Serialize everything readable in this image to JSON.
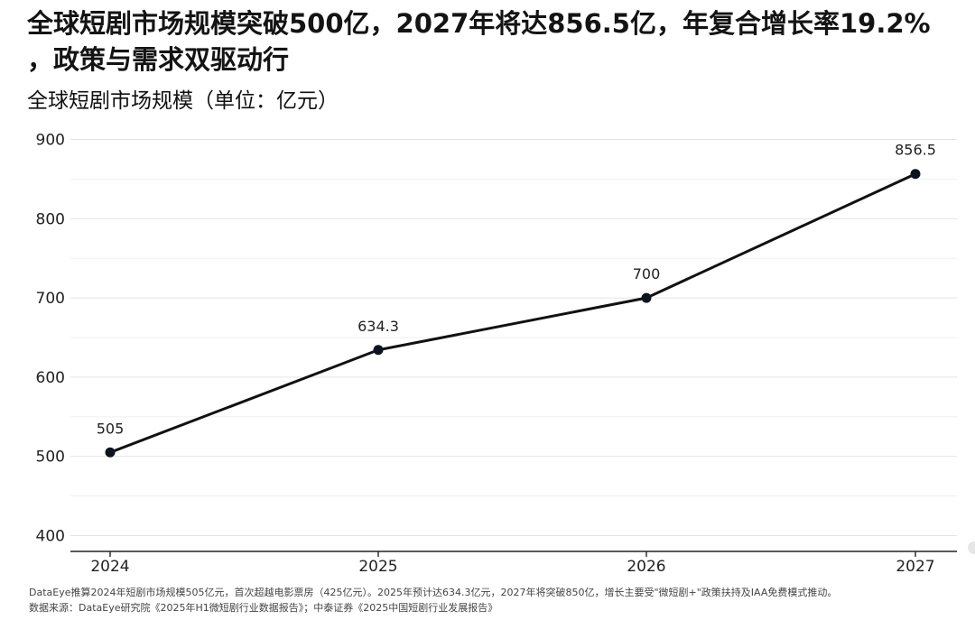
{
  "headline": {
    "line1": "全球短剧市场规模突破500亿，2027年将达856.5亿，年复合增长率19.2%",
    "line2": "，政策与需求双驱动行"
  },
  "chart_data": {
    "type": "line",
    "title": "全球短剧市场规模（单位：亿元）",
    "categories": [
      "2024",
      "2025",
      "2026",
      "2027"
    ],
    "values": [
      505,
      634.3,
      700,
      856.5
    ],
    "data_labels": [
      "505",
      "634.3",
      "700",
      "856.5"
    ],
    "y_ticks": [
      400,
      500,
      600,
      700,
      800,
      900
    ],
    "y_tick_labels": [
      "400",
      "500",
      "600",
      "700",
      "800",
      "900"
    ],
    "ylim": [
      380,
      920
    ],
    "xlabel": "",
    "ylabel": "",
    "grid": true,
    "line_color": "#111111",
    "grid_color": "#e4e4e4"
  },
  "notes": {
    "line1": "DataEye推算2024年短剧市场规模505亿元，首次超越电影票房（425亿元）。2025年预计达634.3亿元，2027年将突破850亿，增长主要受\"微短剧+\"政策扶持及IAA免费模式推动。",
    "line2": "数据来源：DataEye研究院《2025年H1微短剧行业数据报告》；中泰证券《2025中国短剧行业发展报告》"
  }
}
